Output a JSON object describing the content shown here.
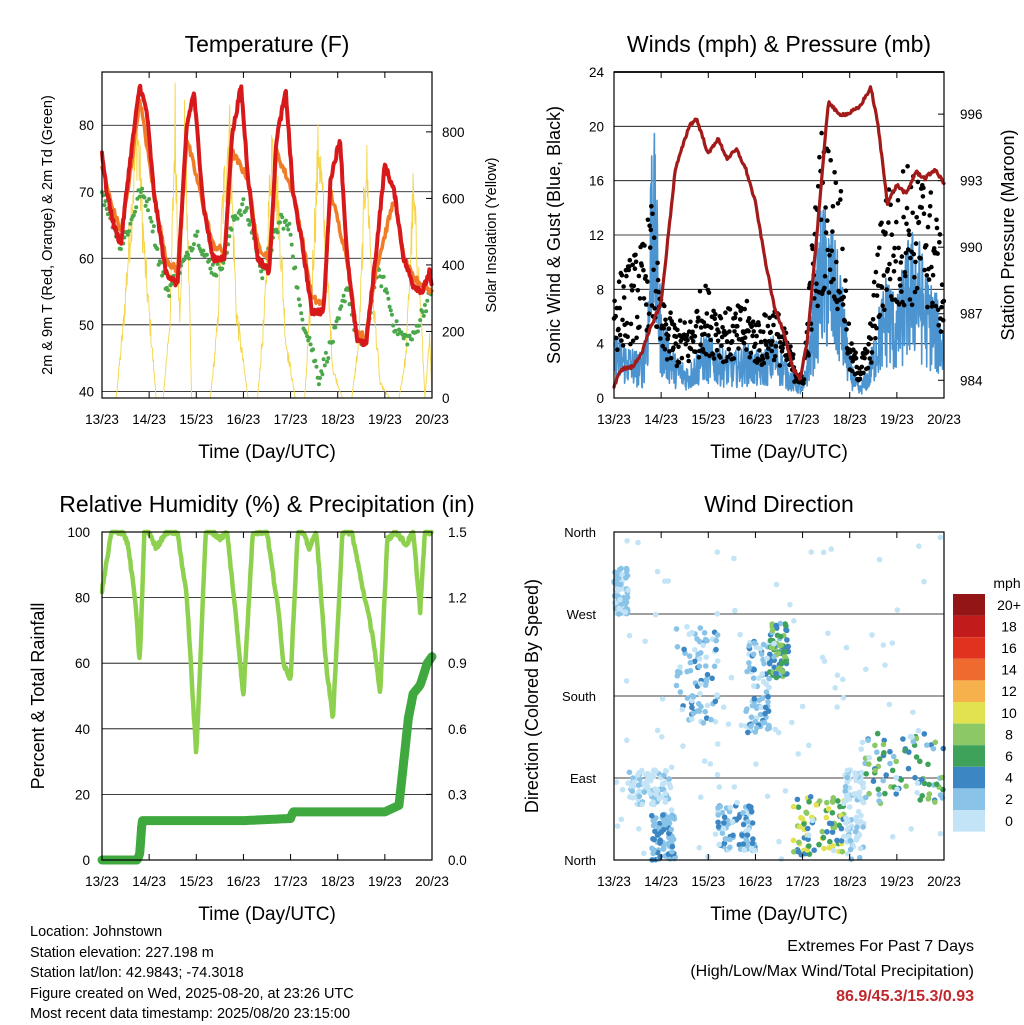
{
  "chart_data": [
    {
      "type": "line",
      "title": "Temperature (F)",
      "xlabel": "Time (Day/UTC)",
      "ylabel": "2m & 9m T (Red, Orange) & 2m Td (Green)",
      "y2label": "Solar Insolation (Yellow)",
      "x_ticks": [
        "13/23",
        "14/23",
        "15/23",
        "16/23",
        "17/23",
        "18/23",
        "19/23",
        "20/23"
      ],
      "ylim": [
        39,
        88
      ],
      "y_ticks": [
        40,
        50,
        60,
        70,
        80
      ],
      "y2lim": [
        0,
        980
      ],
      "y2_ticks": [
        0,
        200,
        400,
        600,
        800
      ],
      "colors": {
        "t2m": "#d7191c",
        "t9m": "#f07c28",
        "td2m": "#4aa84a",
        "solar": "#f5d547"
      },
      "series": [
        {
          "name": "2m T",
          "x": [
            0,
            0.1,
            0.25,
            0.4,
            0.55,
            0.8,
            0.95,
            1.1,
            1.35,
            1.6,
            1.8,
            1.95,
            2.15,
            2.35,
            2.6,
            2.75,
            2.95,
            3.1,
            3.3,
            3.55,
            3.7,
            3.9,
            4.05,
            4.25,
            4.45,
            4.7,
            4.85,
            5.05,
            5.2,
            5.4,
            5.6,
            5.8,
            6.0,
            6.2,
            6.4,
            6.6,
            6.8,
            6.95,
            7.0
          ],
          "values": [
            76,
            70,
            65,
            62,
            72,
            86,
            82,
            70,
            58,
            56,
            80,
            85,
            68,
            60,
            60,
            78,
            86,
            72,
            60,
            58,
            78,
            85,
            70,
            62,
            52,
            52,
            72,
            78,
            60,
            48,
            47,
            60,
            74,
            70,
            60,
            56,
            55,
            58,
            55
          ]
        },
        {
          "name": "9m T",
          "x": [
            0,
            0.2,
            0.4,
            0.55,
            0.8,
            1.1,
            1.35,
            1.6,
            1.8,
            2.15,
            2.35,
            2.6,
            2.75,
            3.1,
            3.3,
            3.55,
            3.7,
            4.05,
            4.25,
            4.45,
            4.7,
            4.85,
            5.2,
            5.4,
            5.6,
            5.8,
            6.2,
            6.4,
            6.6,
            7.0
          ],
          "values": [
            74,
            68,
            64,
            70,
            84,
            70,
            60,
            58,
            78,
            68,
            62,
            61,
            76,
            72,
            62,
            60,
            76,
            70,
            63,
            54,
            53,
            70,
            60,
            49,
            48,
            58,
            69,
            60,
            57,
            55
          ]
        },
        {
          "name": "2m Td",
          "x": [
            0,
            0.2,
            0.4,
            0.6,
            0.8,
            1.0,
            1.2,
            1.4,
            1.6,
            1.8,
            2.0,
            2.2,
            2.4,
            2.6,
            2.8,
            3.0,
            3.2,
            3.4,
            3.6,
            3.8,
            4.0,
            4.2,
            4.4,
            4.6,
            4.8,
            5.0,
            5.2,
            5.4,
            5.6,
            5.8,
            6.0,
            6.2,
            6.4,
            6.6,
            6.8,
            7.0
          ],
          "values": [
            70,
            66,
            62,
            65,
            70,
            68,
            60,
            55,
            58,
            60,
            64,
            60,
            58,
            60,
            66,
            68,
            64,
            58,
            62,
            66,
            64,
            52,
            48,
            42,
            46,
            50,
            56,
            48,
            47,
            58,
            56,
            50,
            48,
            48,
            52,
            55
          ]
        },
        {
          "name": "Solar Insolation",
          "axis": "y2",
          "x": [
            0.0,
            0.3,
            0.45,
            0.6,
            0.75,
            0.9,
            1.15,
            1.3,
            1.45,
            1.55,
            1.65,
            1.75,
            1.85,
            1.9,
            2.1,
            2.3,
            2.45,
            2.55,
            2.7,
            2.85,
            3.1,
            3.3,
            3.45,
            3.6,
            3.75,
            3.9,
            4.1,
            4.3,
            4.45,
            4.6,
            4.75,
            4.9,
            5.1,
            5.3,
            5.45,
            5.6,
            5.75,
            5.9,
            6.1,
            6.3,
            6.45,
            6.6,
            6.75,
            6.85,
            6.95,
            7.0
          ],
          "values": [
            0,
            0,
            250,
            600,
            950,
            500,
            0,
            0,
            300,
            980,
            250,
            900,
            400,
            0,
            0,
            0,
            250,
            650,
            950,
            300,
            0,
            0,
            300,
            900,
            650,
            200,
            0,
            0,
            400,
            900,
            500,
            100,
            0,
            0,
            200,
            850,
            350,
            50,
            0,
            0,
            150,
            700,
            350,
            0,
            200,
            0
          ]
        }
      ]
    },
    {
      "type": "line",
      "title": "Winds (mph) & Pressure (mb)",
      "xlabel": "Time (Day/UTC)",
      "ylabel": "Sonic Wind & Gust (Blue, Black)",
      "y2label": "Station Pressure (Maroon)",
      "x_ticks": [
        "13/23",
        "14/23",
        "15/23",
        "16/23",
        "17/23",
        "18/23",
        "19/23",
        "20/23"
      ],
      "ylim": [
        0,
        24
      ],
      "y_ticks": [
        0,
        4,
        8,
        12,
        16,
        20,
        24
      ],
      "y2lim": [
        983.2,
        997.9
      ],
      "y2_ticks": [
        984,
        987,
        990,
        993,
        996
      ],
      "colors": {
        "wind": "#4b94d0",
        "gust": "#000000",
        "pressure": "#a31a1a"
      },
      "series": [
        {
          "name": "Sonic Wind",
          "x": [
            0,
            0.3,
            0.6,
            0.75,
            0.8,
            1.0,
            1.3,
            1.6,
            1.9,
            2.2,
            2.5,
            2.8,
            3.1,
            3.4,
            3.7,
            4.0,
            4.2,
            4.4,
            4.6,
            4.8,
            5.0,
            5.2,
            5.4,
            5.6,
            5.8,
            6.0,
            6.2,
            6.4,
            6.6,
            6.8,
            7.0
          ],
          "values": [
            3,
            2.5,
            2,
            6,
            15,
            4,
            2,
            1.5,
            3,
            2.5,
            2,
            2.5,
            2,
            3,
            1.5,
            0.5,
            4,
            9,
            8,
            6,
            2,
            0.5,
            1.5,
            4,
            6,
            4.5,
            7,
            8,
            6,
            5,
            3.5
          ]
        },
        {
          "name": "Gust",
          "x": [
            0,
            0.3,
            0.6,
            0.8,
            1.0,
            1.3,
            1.6,
            1.9,
            2.2,
            2.5,
            2.8,
            3.1,
            3.4,
            3.7,
            4.0,
            4.2,
            4.4,
            4.6,
            4.8,
            5.0,
            5.2,
            5.4,
            5.6,
            5.8,
            6.0,
            6.2,
            6.4,
            6.6,
            6.8,
            7.0
          ],
          "values": [
            6,
            7,
            8,
            10,
            5,
            4,
            4,
            6,
            5,
            4.5,
            5,
            4,
            5,
            3,
            1,
            8,
            14,
            13,
            11,
            3,
            2,
            3,
            8,
            12,
            10,
            13,
            11,
            12,
            10,
            7
          ]
        },
        {
          "name": "Station Pressure",
          "axis": "y2",
          "x": [
            0,
            0.15,
            0.4,
            0.6,
            0.8,
            1.0,
            1.3,
            1.6,
            1.75,
            2.0,
            2.2,
            2.4,
            2.6,
            2.8,
            3.0,
            3.2,
            3.4,
            3.6,
            3.8,
            3.95,
            4.1,
            4.3,
            4.55,
            4.75,
            4.95,
            5.2,
            5.45,
            5.6,
            5.8,
            6.0,
            6.2,
            6.4,
            6.6,
            6.8,
            7.0
          ],
          "values": [
            983.7,
            984.5,
            984.6,
            985.3,
            986.5,
            987.5,
            993.5,
            995.5,
            995.8,
            994.2,
            994.9,
            994.0,
            994.4,
            993.5,
            992.0,
            989.5,
            987.3,
            986.2,
            984.5,
            984.0,
            985.8,
            990.5,
            996.6,
            996.0,
            996.0,
            996.3,
            997.2,
            995.5,
            992.0,
            992.8,
            992.4,
            993.4,
            993.1,
            993.5,
            992.9
          ]
        }
      ]
    },
    {
      "type": "line",
      "title": "Relative Humidity (%) & Precipitation (in)",
      "xlabel": "Time (Day/UTC)",
      "ylabel": "Percent & Total Rainfall",
      "x_ticks": [
        "13/23",
        "14/23",
        "15/23",
        "16/23",
        "17/23",
        "18/23",
        "19/23",
        "20/23"
      ],
      "ylim": [
        0,
        100
      ],
      "y_ticks": [
        0,
        20,
        40,
        60,
        80,
        100
      ],
      "y2lim": [
        0,
        1.5
      ],
      "y2_ticks": [
        "0.0",
        "0.3",
        "0.6",
        "0.9",
        "1.2",
        "1.5"
      ],
      "colors": {
        "rh": "#8ed14f",
        "precip": "#3fa93f"
      },
      "series": [
        {
          "name": "Relative Humidity",
          "x": [
            0,
            0.2,
            0.45,
            0.55,
            0.7,
            0.8,
            0.9,
            1.0,
            1.15,
            1.35,
            1.6,
            1.8,
            2.0,
            2.2,
            2.35,
            2.5,
            2.65,
            2.8,
            3.0,
            3.2,
            3.5,
            3.75,
            3.85,
            4.0,
            4.15,
            4.25,
            4.4,
            4.55,
            4.75,
            4.9,
            5.1,
            5.3,
            5.5,
            5.75,
            5.9,
            6.05,
            6.25,
            6.45,
            6.6,
            6.75,
            6.85,
            7.0
          ],
          "values": [
            82,
            100,
            100,
            96,
            80,
            60,
            100,
            100,
            95,
            100,
            100,
            80,
            32,
            100,
            100,
            98,
            100,
            80,
            50,
            100,
            100,
            75,
            60,
            55,
            100,
            100,
            95,
            100,
            60,
            43,
            100,
            100,
            85,
            68,
            50,
            98,
            100,
            96,
            100,
            76,
            100,
            100
          ]
        },
        {
          "name": "Total Precipitation",
          "axis": "y2",
          "x": [
            0,
            0.5,
            0.75,
            0.8,
            0.85,
            1.0,
            2.0,
            3.0,
            4.0,
            4.05,
            5.0,
            6.0,
            6.3,
            6.4,
            6.5,
            6.6,
            6.75,
            6.9,
            7.0
          ],
          "values": [
            0.0,
            0.0,
            0.0,
            0.03,
            0.18,
            0.18,
            0.18,
            0.18,
            0.19,
            0.22,
            0.22,
            0.22,
            0.25,
            0.45,
            0.65,
            0.76,
            0.8,
            0.9,
            0.93
          ]
        }
      ]
    },
    {
      "type": "scatter",
      "title": "Wind Direction",
      "xlabel": "Time (Day/UTC)",
      "ylabel": "Direction (Colored By Speed)",
      "x_ticks": [
        "13/23",
        "14/23",
        "15/23",
        "16/23",
        "17/23",
        "18/23",
        "19/23",
        "20/23"
      ],
      "y_ticks": [
        "North",
        "East",
        "South",
        "West",
        "North"
      ],
      "ylim": [
        0,
        360
      ],
      "legend_title": "mph",
      "legend": [
        {
          "label": "0",
          "color": "#c3e4f6"
        },
        {
          "label": "2",
          "color": "#89c4e8"
        },
        {
          "label": "4",
          "color": "#3b86c3"
        },
        {
          "label": "6",
          "color": "#3fa25b"
        },
        {
          "label": "8",
          "color": "#8cc866"
        },
        {
          "label": "10",
          "color": "#e2e150"
        },
        {
          "label": "12",
          "color": "#f6b04c"
        },
        {
          "label": "14",
          "color": "#ef6a2e"
        },
        {
          "label": "16",
          "color": "#e0321f"
        },
        {
          "label": "18",
          "color": "#c11b1b"
        },
        {
          "label": "20+",
          "color": "#931515"
        }
      ],
      "legend_position": "right",
      "clusters": [
        {
          "x": [
            0.0,
            0.3
          ],
          "dir": [
            270,
            320
          ],
          "speed": [
            1,
            4
          ]
        },
        {
          "x": [
            0.3,
            1.2
          ],
          "dir": [
            60,
            100
          ],
          "speed": [
            0,
            3
          ]
        },
        {
          "x": [
            0.8,
            1.3
          ],
          "dir": [
            0,
            50
          ],
          "speed": [
            2,
            5
          ]
        },
        {
          "x": [
            1.3,
            2.2
          ],
          "dir": [
            150,
            260
          ],
          "speed": [
            1,
            5
          ]
        },
        {
          "x": [
            2.2,
            3.0
          ],
          "dir": [
            10,
            60
          ],
          "speed": [
            1,
            6
          ]
        },
        {
          "x": [
            2.8,
            3.3
          ],
          "dir": [
            140,
            240
          ],
          "speed": [
            1,
            5
          ]
        },
        {
          "x": [
            3.3,
            3.7
          ],
          "dir": [
            200,
            260
          ],
          "speed": [
            3,
            10
          ]
        },
        {
          "x": [
            3.8,
            4.9
          ],
          "dir": [
            5,
            70
          ],
          "speed": [
            4,
            12
          ]
        },
        {
          "x": [
            4.9,
            5.3
          ],
          "dir": [
            0,
            100
          ],
          "speed": [
            0,
            3
          ]
        },
        {
          "x": [
            5.3,
            7.0
          ],
          "dir": [
            60,
            140
          ],
          "speed": [
            2,
            10
          ]
        },
        {
          "x": [
            0.0,
            7.0
          ],
          "dir": [
            0,
            360
          ],
          "speed": [
            0,
            2
          ]
        }
      ]
    }
  ],
  "footer": {
    "location": "Location: Johnstown",
    "elevation": "Station elevation: 227.198 m",
    "latlon": "Station lat/lon: 42.9843; -74.3018",
    "created": "Figure created on Wed, 2025-08-20, at 23:26 UTC",
    "recent": "Most recent data timestamp: 2025/08/20 23:15:00"
  },
  "extremes": {
    "title": "Extremes For Past 7 Days",
    "subtitle": "(High/Low/Max Wind/Total Precipitation)",
    "values": "86.9/45.3/15.3/0.93"
  }
}
